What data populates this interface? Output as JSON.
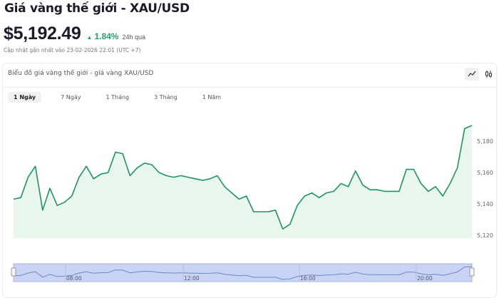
{
  "header": {
    "title": "Giá vàng thế giới - XAU/USD",
    "price": "$5,192.49",
    "change": "1.84%",
    "change_period": "24h qua",
    "updated": "Cập nhật gần nhất vào 23-02-2026 22:01 (UTC +7)",
    "up_color": "#23a36a"
  },
  "card": {
    "title": "Biểu đồ giá vàng thế giới - giá vàng XAU/USD",
    "icons": [
      "line-chart-icon",
      "candlestick-icon"
    ],
    "tabs": [
      {
        "label": "1 Ngày",
        "active": true
      },
      {
        "label": "7 Ngày",
        "active": false
      },
      {
        "label": "1 Tháng",
        "active": false
      },
      {
        "label": "3 Tháng",
        "active": false
      },
      {
        "label": "1 Năm",
        "active": false
      }
    ]
  },
  "chart_data": {
    "type": "area",
    "line_color": "#1f9460",
    "fill_color": "#e9f6ee",
    "ylim": [
      5117,
      5193
    ],
    "y_ticks": [
      "5,120",
      "5,140",
      "5,160",
      "5,180"
    ],
    "y_tick_values": [
      5120,
      5140,
      5160,
      5180
    ],
    "grid": false,
    "navigator_x_ticks": [
      "08:00",
      "12:00",
      "16:00",
      "20:00"
    ],
    "values": [
      5143,
      5144,
      5157,
      5164,
      5136,
      5150,
      5139,
      5141,
      5145,
      5157,
      5164,
      5156,
      5159,
      5160,
      5173,
      5172,
      5158,
      5163,
      5166,
      5165,
      5160,
      5158,
      5157,
      5158,
      5157,
      5156,
      5155,
      5156,
      5158,
      5151,
      5147,
      5143,
      5145,
      5135,
      5135,
      5135,
      5136,
      5124,
      5127,
      5139,
      5145,
      5147,
      5144,
      5147,
      5148,
      5153,
      5151,
      5161,
      5152,
      5149,
      5149,
      5148,
      5148,
      5148,
      5162,
      5162,
      5153,
      5148,
      5151,
      5145,
      5153,
      5163,
      5188,
      5190
    ]
  }
}
